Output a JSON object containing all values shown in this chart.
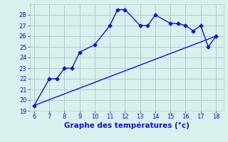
{
  "title": "Graphe des températures (°c)",
  "line1_x": [
    6,
    7,
    7.5,
    8,
    8.5,
    9,
    10,
    11,
    11.5,
    12,
    13,
    13.5,
    14,
    15,
    15.5,
    16,
    16.5,
    17,
    17.5,
    18
  ],
  "line1_y": [
    19.5,
    22,
    22,
    23,
    23,
    24.5,
    25.2,
    27,
    28.5,
    28.5,
    27,
    27,
    28,
    27.2,
    27.2,
    27,
    26.5,
    27,
    25,
    26
  ],
  "line2_x": [
    6,
    18
  ],
  "line2_y": [
    19.5,
    26
  ],
  "xlim": [
    5.7,
    18.5
  ],
  "ylim": [
    19,
    29
  ],
  "xticks": [
    6,
    7,
    8,
    9,
    10,
    11,
    12,
    13,
    14,
    15,
    16,
    17,
    18
  ],
  "yticks": [
    19,
    20,
    21,
    22,
    23,
    24,
    25,
    26,
    27,
    28
  ],
  "line_color": "#1414cc",
  "bg_color": "#d8f0ee",
  "grid_color": "#aacece",
  "tick_color": "#1414cc",
  "label_color": "#1414cc",
  "marker": "D",
  "marker_size": 2.5,
  "linewidth": 1.0,
  "title_fontsize": 7.5,
  "tick_fontsize": 6.0
}
